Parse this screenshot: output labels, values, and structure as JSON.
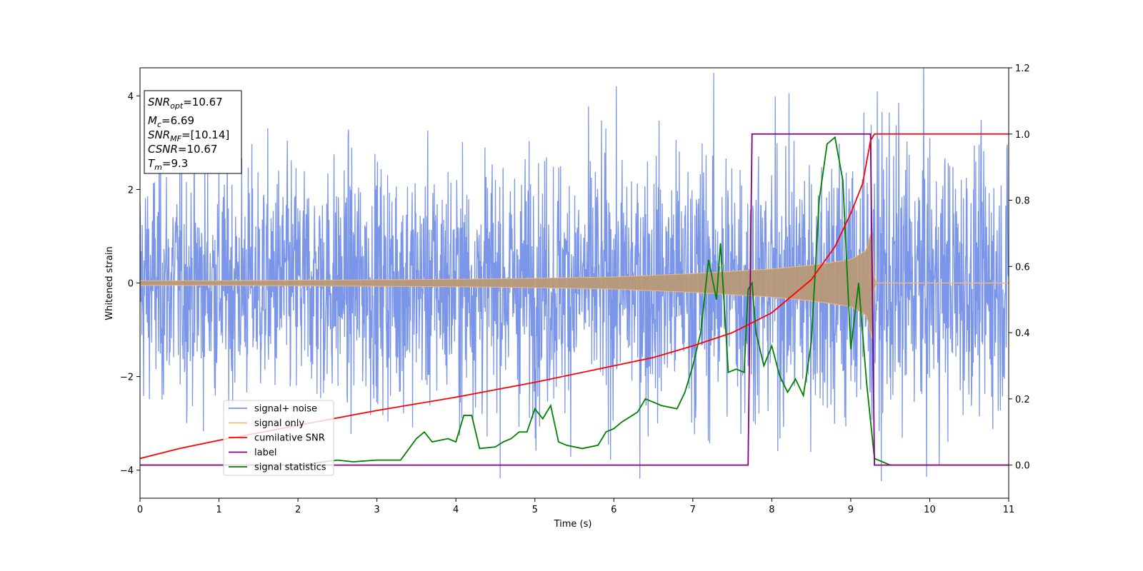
{
  "chart_data": {
    "type": "line",
    "xlabel": "Time (s)",
    "ylabel_left": "Whitened strain",
    "ylabel_right": "",
    "xlim": [
      0,
      11
    ],
    "ylim_left": [
      -4.6,
      4.6
    ],
    "ylim_right": [
      -0.1,
      1.2
    ],
    "x_ticks": [
      0,
      1,
      2,
      3,
      4,
      5,
      6,
      7,
      8,
      9,
      10,
      11
    ],
    "y_ticks_left": [
      -4,
      -2,
      0,
      2,
      4
    ],
    "y_ticks_right": [
      0.0,
      0.2,
      0.4,
      0.6,
      0.8,
      1.0,
      1.2
    ],
    "legend_position": "lower-left",
    "info_box": {
      "snr_opt": {
        "symbol": "SNR",
        "sub": "opt",
        "value": "=10.67"
      },
      "mc": {
        "symbol": "M",
        "sub": "c",
        "value": "=6.69"
      },
      "snr_mf": {
        "symbol": "SNR",
        "sub": "MF",
        "value": "=[10.14]"
      },
      "csnr": {
        "symbol": "CSNR",
        "value": "=10.67"
      },
      "tm": {
        "symbol": "T",
        "sub": "m",
        "value": "=9.3"
      }
    },
    "series": [
      {
        "name": "signal+ noise",
        "axis": "left",
        "color": "#7b96e8",
        "description": "noise band",
        "band_points": [
          [
            0,
            2.0
          ],
          [
            2,
            2.05
          ],
          [
            4,
            2.1
          ],
          [
            6,
            2.2
          ],
          [
            7,
            2.3
          ],
          [
            8,
            2.4
          ],
          [
            9,
            2.5
          ],
          [
            9.3,
            2.6
          ],
          [
            11,
            2.1
          ]
        ]
      },
      {
        "name": "signal only",
        "axis": "left",
        "color": "#f0b87a",
        "envelope": [
          [
            0,
            0.05
          ],
          [
            1,
            0.05
          ],
          [
            2,
            0.06
          ],
          [
            3,
            0.07
          ],
          [
            4,
            0.08
          ],
          [
            5,
            0.1
          ],
          [
            6,
            0.13
          ],
          [
            7,
            0.2
          ],
          [
            7.5,
            0.25
          ],
          [
            8,
            0.3
          ],
          [
            8.5,
            0.38
          ],
          [
            9,
            0.5
          ],
          [
            9.2,
            0.7
          ],
          [
            9.27,
            1.2
          ],
          [
            9.3,
            0.0
          ],
          [
            11,
            0.0
          ]
        ]
      },
      {
        "name": "cumilative SNR",
        "axis": "right",
        "color": "#ff0000",
        "points": [
          [
            0,
            0.02
          ],
          [
            0.5,
            0.05
          ],
          [
            1,
            0.075
          ],
          [
            2,
            0.12
          ],
          [
            3,
            0.165
          ],
          [
            4,
            0.205
          ],
          [
            5,
            0.25
          ],
          [
            6,
            0.3
          ],
          [
            6.5,
            0.325
          ],
          [
            7,
            0.36
          ],
          [
            7.5,
            0.4
          ],
          [
            8,
            0.46
          ],
          [
            8.5,
            0.56
          ],
          [
            8.8,
            0.66
          ],
          [
            9,
            0.76
          ],
          [
            9.15,
            0.85
          ],
          [
            9.25,
            0.98
          ],
          [
            9.3,
            1.0
          ],
          [
            11,
            1.0
          ]
        ]
      },
      {
        "name": "label",
        "axis": "right",
        "color": "#800080",
        "points": [
          [
            0,
            0.0
          ],
          [
            7.7,
            0.0
          ],
          [
            7.75,
            1.0
          ],
          [
            9.25,
            1.0
          ],
          [
            9.3,
            0.0
          ],
          [
            11,
            0.0
          ]
        ]
      },
      {
        "name": "signal statistics",
        "axis": "right",
        "color": "#008000",
        "points": [
          [
            0,
            0.0
          ],
          [
            1,
            0.0
          ],
          [
            2,
            0.0
          ],
          [
            2.5,
            0.015
          ],
          [
            2.7,
            0.01
          ],
          [
            3,
            0.015
          ],
          [
            3.3,
            0.015
          ],
          [
            3.5,
            0.08
          ],
          [
            3.6,
            0.1
          ],
          [
            3.7,
            0.07
          ],
          [
            3.9,
            0.08
          ],
          [
            4.0,
            0.07
          ],
          [
            4.1,
            0.15
          ],
          [
            4.2,
            0.15
          ],
          [
            4.3,
            0.05
          ],
          [
            4.5,
            0.055
          ],
          [
            4.6,
            0.07
          ],
          [
            4.7,
            0.08
          ],
          [
            4.8,
            0.1
          ],
          [
            4.9,
            0.1
          ],
          [
            5.0,
            0.17
          ],
          [
            5.1,
            0.14
          ],
          [
            5.2,
            0.18
          ],
          [
            5.3,
            0.07
          ],
          [
            5.4,
            0.06
          ],
          [
            5.6,
            0.05
          ],
          [
            5.8,
            0.06
          ],
          [
            5.9,
            0.1
          ],
          [
            6.0,
            0.11
          ],
          [
            6.1,
            0.13
          ],
          [
            6.3,
            0.16
          ],
          [
            6.4,
            0.2
          ],
          [
            6.5,
            0.19
          ],
          [
            6.6,
            0.18
          ],
          [
            6.8,
            0.17
          ],
          [
            6.9,
            0.22
          ],
          [
            7.0,
            0.3
          ],
          [
            7.1,
            0.4
          ],
          [
            7.2,
            0.62
          ],
          [
            7.3,
            0.5
          ],
          [
            7.35,
            0.67
          ],
          [
            7.45,
            0.28
          ],
          [
            7.55,
            0.29
          ],
          [
            7.65,
            0.28
          ],
          [
            7.7,
            0.53
          ],
          [
            7.75,
            0.55
          ],
          [
            7.8,
            0.4
          ],
          [
            7.9,
            0.3
          ],
          [
            8.0,
            0.36
          ],
          [
            8.1,
            0.27
          ],
          [
            8.2,
            0.22
          ],
          [
            8.3,
            0.26
          ],
          [
            8.4,
            0.21
          ],
          [
            8.5,
            0.37
          ],
          [
            8.6,
            0.8
          ],
          [
            8.7,
            0.97
          ],
          [
            8.8,
            0.99
          ],
          [
            8.9,
            0.86
          ],
          [
            9.0,
            0.35
          ],
          [
            9.1,
            0.55
          ],
          [
            9.2,
            0.25
          ],
          [
            9.3,
            0.02
          ],
          [
            9.5,
            0.0
          ],
          [
            11,
            0.0
          ]
        ]
      }
    ]
  }
}
